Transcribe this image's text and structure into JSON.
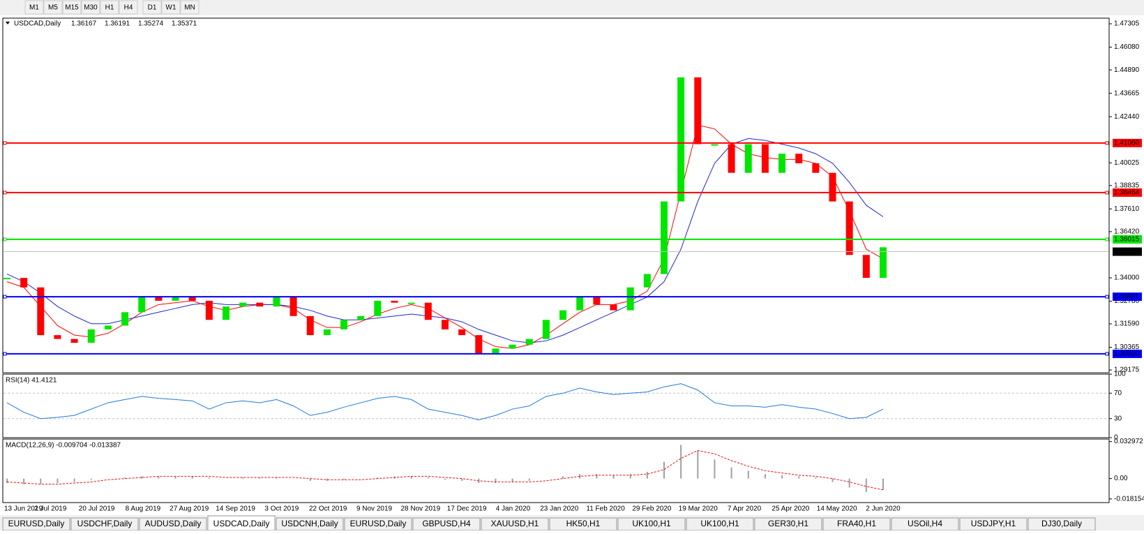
{
  "toolbar": {
    "buttons": [
      "M1",
      "M5",
      "M15",
      "M30",
      "H1",
      "H4",
      "D1",
      "W1",
      "MN"
    ]
  },
  "tabs": [
    "EURUSD,Daily",
    "USDCHF,Daily",
    "AUDUSD,Daily",
    "USDCAD,Daily",
    "USDCNH,Daily",
    "EURUSD,Daily",
    "GBPUSD,H4",
    "XAUUSD,H1",
    "HK50,H1",
    "UK100,H1",
    "UK100,H1",
    "GER30,H1",
    "FRA40,H1",
    "USOil,H4",
    "USDJPY,H1",
    "DJ30,Daily"
  ],
  "active_tab": 3,
  "date_labels": [
    "13 Jun 2019",
    "2 Jul 2019",
    "20 Jul 2019",
    "8 Aug 2019",
    "27 Aug 2019",
    "14 Sep 2019",
    "3 Oct 2019",
    "22 Oct 2019",
    "9 Nov 2019",
    "28 Nov 2019",
    "17 Dec 2019",
    "4 Jan 2020",
    "23 Jan 2020",
    "11 Feb 2020",
    "29 Feb 2020",
    "19 Mar 2020",
    "7 Apr 2020",
    "25 Apr 2020",
    "14 May 2020",
    "2 Jun 2020"
  ],
  "chart_data": [
    {
      "type": "candlestick",
      "title": "USDCAD,Daily",
      "quote": [
        "1.36167",
        "1.36191",
        "1.35274",
        "1.35371"
      ],
      "values": [
        1.34,
        1.335,
        1.31,
        1.308,
        1.306,
        1.313,
        1.315,
        1.322,
        1.33,
        1.328,
        1.33,
        1.328,
        1.318,
        1.325,
        1.327,
        1.325,
        1.33,
        1.32,
        1.31,
        1.313,
        1.318,
        1.32,
        1.328,
        1.327,
        1.327,
        1.318,
        1.313,
        1.31,
        1.3,
        1.303,
        1.305,
        1.308,
        1.318,
        1.323,
        1.33,
        1.326,
        1.323,
        1.335,
        1.342,
        1.38,
        1.445,
        1.41,
        1.41,
        1.395,
        1.41,
        1.395,
        1.405,
        1.4,
        1.395,
        1.38,
        1.352,
        1.34,
        1.356
      ],
      "up_color": "#00e600",
      "down_color": "#ff0000",
      "series": [
        {
          "color": "#ff0000",
          "values": [
            1.338,
            1.335,
            1.325,
            1.315,
            1.31,
            1.309,
            1.311,
            1.316,
            1.322,
            1.326,
            1.327,
            1.328,
            1.325,
            1.323,
            1.325,
            1.326,
            1.326,
            1.324,
            1.318,
            1.314,
            1.314,
            1.317,
            1.321,
            1.324,
            1.326,
            1.324,
            1.319,
            1.314,
            1.308,
            1.304,
            1.303,
            1.305,
            1.31,
            1.316,
            1.322,
            1.326,
            1.326,
            1.328,
            1.333,
            1.35,
            1.385,
            1.42,
            1.418,
            1.41,
            1.405,
            1.403,
            1.402,
            1.402,
            1.4,
            1.393,
            1.375,
            1.355,
            1.35
          ]
        },
        {
          "color": "#1e28c8",
          "values": [
            1.342,
            1.338,
            1.332,
            1.325,
            1.32,
            1.316,
            1.316,
            1.318,
            1.32,
            1.322,
            1.324,
            1.326,
            1.327,
            1.326,
            1.326,
            1.326,
            1.326,
            1.325,
            1.323,
            1.32,
            1.318,
            1.318,
            1.319,
            1.32,
            1.321,
            1.32,
            1.319,
            1.317,
            1.313,
            1.31,
            1.307,
            1.306,
            1.307,
            1.31,
            1.314,
            1.318,
            1.322,
            1.326,
            1.33,
            1.338,
            1.355,
            1.38,
            1.4,
            1.41,
            1.413,
            1.412,
            1.41,
            1.408,
            1.405,
            1.4,
            1.39,
            1.378,
            1.372
          ]
        }
      ],
      "levels": [
        {
          "value": 1.4106,
          "label": "1.41060",
          "color": "#ff0000"
        },
        {
          "value": 1.38464,
          "label": "1.38464",
          "color": "#ff0000"
        },
        {
          "value": 1.36015,
          "label": "1.36015",
          "color": "#00e600"
        },
        {
          "value": 1.33011,
          "label": "1.33011",
          "color": "#0000ff"
        },
        {
          "value": 1.3002,
          "label": "1.30020",
          "color": "#0000ff"
        }
      ],
      "current": {
        "value": 1.35371,
        "label": "1.35371"
      },
      "ylim": [
        1.2903,
        1.476
      ],
      "yticks": [
        {
          "value": 1.47305,
          "label": "1.47305"
        },
        {
          "value": 1.4608,
          "label": "1.46080"
        },
        {
          "value": 1.4489,
          "label": "1.44890"
        },
        {
          "value": 1.43665,
          "label": "1.43665"
        },
        {
          "value": 1.4244,
          "label": "1.42440"
        },
        {
          "value": 1.40025,
          "label": "1.40025"
        },
        {
          "value": 1.38835,
          "label": "1.38835"
        },
        {
          "value": 1.3761,
          "label": "1.37610"
        },
        {
          "value": 1.3642,
          "label": "1.36420"
        },
        {
          "value": 1.34,
          "label": "1.34000"
        },
        {
          "value": 1.3278,
          "label": "1.32780"
        },
        {
          "value": 1.3159,
          "label": "1.31590"
        },
        {
          "value": 1.30365,
          "label": "1.30365"
        },
        {
          "value": 1.29175,
          "label": "1.29175"
        }
      ]
    },
    {
      "type": "line",
      "title": "RSI(14) 41.4121",
      "color": "#1e78dc",
      "values": [
        55,
        40,
        30,
        32,
        35,
        45,
        55,
        60,
        65,
        62,
        60,
        58,
        45,
        55,
        58,
        55,
        60,
        50,
        35,
        40,
        48,
        55,
        62,
        65,
        60,
        45,
        40,
        35,
        28,
        35,
        45,
        50,
        65,
        70,
        78,
        72,
        68,
        70,
        72,
        80,
        85,
        75,
        55,
        50,
        50,
        48,
        52,
        48,
        45,
        38,
        30,
        32,
        45
      ],
      "ylim": [
        0,
        100
      ],
      "yticks": [
        100,
        70,
        30,
        0
      ],
      "levels": [
        70,
        30
      ]
    },
    {
      "type": "macd",
      "title": "MACD(12,26,9) -0.009704 -0.013387",
      "hist_color": "#a0a0a0",
      "signal_color": "#ff0000",
      "values": [
        -0.004,
        -0.005,
        -0.005,
        -0.004,
        -0.003,
        -0.001,
        0.0,
        0.001,
        0.002,
        0.002,
        0.002,
        0.002,
        0.001,
        0.0,
        0.001,
        0.001,
        0.001,
        0.0,
        -0.002,
        -0.002,
        -0.001,
        0.0,
        0.001,
        0.002,
        0.002,
        0.001,
        -0.001,
        -0.002,
        -0.004,
        -0.004,
        -0.003,
        -0.002,
        0.0,
        0.002,
        0.004,
        0.004,
        0.003,
        0.004,
        0.006,
        0.015,
        0.03,
        0.025,
        0.017,
        0.01,
        0.007,
        0.004,
        0.003,
        0.002,
        0.001,
        -0.003,
        -0.008,
        -0.012,
        -0.01
      ],
      "signal": [
        -0.003,
        -0.004,
        -0.005,
        -0.005,
        -0.004,
        -0.003,
        -0.001,
        0.0,
        0.001,
        0.002,
        0.002,
        0.002,
        0.002,
        0.001,
        0.001,
        0.001,
        0.001,
        0.001,
        0.0,
        -0.001,
        -0.001,
        -0.001,
        0.0,
        0.001,
        0.002,
        0.002,
        0.001,
        0.0,
        -0.002,
        -0.003,
        -0.003,
        -0.003,
        -0.002,
        0.0,
        0.002,
        0.003,
        0.003,
        0.003,
        0.004,
        0.008,
        0.018,
        0.025,
        0.022,
        0.016,
        0.011,
        0.007,
        0.005,
        0.003,
        0.002,
        0.0,
        -0.003,
        -0.007,
        -0.01
      ],
      "ylim": [
        -0.0214,
        0.0352
      ],
      "yticks": [
        0.032972,
        {
          "value": 0,
          "label": "0.00"
        },
        -0.018154
      ]
    }
  ]
}
